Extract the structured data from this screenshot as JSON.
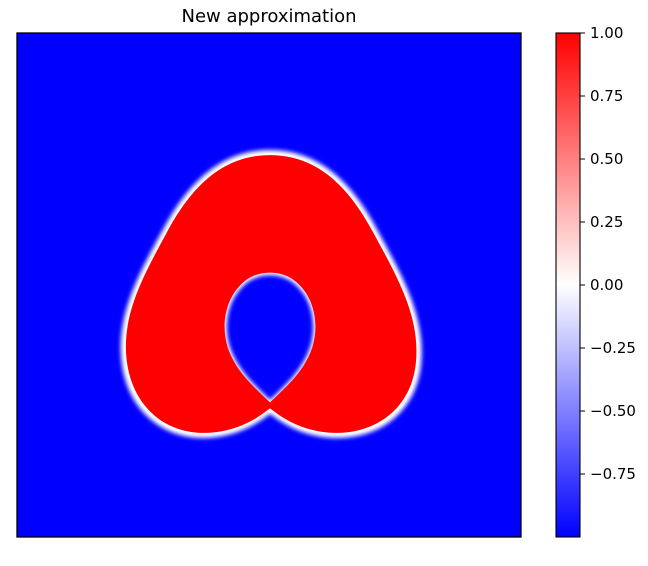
{
  "chart_data": {
    "type": "heatmap",
    "title": "New approximation",
    "xlabel": "",
    "ylabel": "",
    "colormap": "bwr",
    "colors": {
      "low": "#0000ff",
      "mid": "#ffffff",
      "high": "#ff0000"
    },
    "value_range": [
      -1.0,
      1.0
    ],
    "background_value": -1.0,
    "region_value": 1.0,
    "interface": "thin white transition band (value 0) around a red annular region with a tear-drop hole, on a blue field",
    "colorbar": {
      "ticks": [
        1.0,
        0.75,
        0.5,
        0.25,
        0.0,
        -0.25,
        -0.5,
        -0.75
      ],
      "tick_labels": [
        "1.00",
        "0.75",
        "0.50",
        "0.25",
        "0.00",
        "−0.25",
        "−0.50",
        "−0.75"
      ]
    },
    "axes_ticks_visible": false
  }
}
